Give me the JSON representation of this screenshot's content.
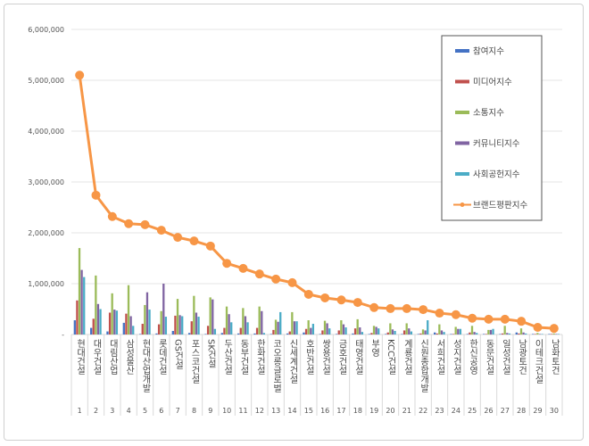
{
  "chart_data": {
    "type": "bar",
    "title": "",
    "xlabel": "",
    "ylabel": "",
    "ylim": [
      0,
      6000000
    ],
    "yticks": [
      "-",
      "1,000,000",
      "2,000,000",
      "3,000,000",
      "4,000,000",
      "5,000,000",
      "6,000,000"
    ],
    "grid": true,
    "legend_position": "top-right",
    "categories": [
      "현대건설",
      "대우건설",
      "대림산업",
      "삼성물산",
      "현대산업개발",
      "롯데건설",
      "GS건설",
      "포스코건설",
      "SK건설",
      "두산건설",
      "동부건설",
      "한화건설",
      "코오롱글로벌",
      "신세계건설",
      "호반건설",
      "쌍용건설",
      "금호건설",
      "태영건설",
      "부영",
      "KCC건설",
      "계룡건설",
      "신원종합개발",
      "서희건설",
      "성지건설",
      "한신공영",
      "동문건설",
      "일성건설",
      "남광토건",
      "이테크건설",
      "남화토건"
    ],
    "ranks": [
      "1",
      "2",
      "3",
      "4",
      "5",
      "6",
      "7",
      "8",
      "9",
      "10",
      "11",
      "12",
      "13",
      "14",
      "15",
      "16",
      "17",
      "18",
      "19",
      "20",
      "21",
      "22",
      "23",
      "24",
      "25",
      "26",
      "27",
      "28",
      "29",
      "30"
    ],
    "series": [
      {
        "name": "참여지수",
        "type": "bar",
        "color": "#4472c4",
        "values": [
          280000,
          130000,
          60000,
          230000,
          10000,
          20000,
          70000,
          30000,
          10000,
          30000,
          20000,
          20000,
          10000,
          20000,
          40000,
          10000,
          10000,
          20000,
          10000,
          10000,
          10000,
          10000,
          40000,
          10000,
          10000,
          10000,
          10000,
          40000,
          10000,
          10000
        ]
      },
      {
        "name": "미디어지수",
        "type": "bar",
        "color": "#c0504d",
        "values": [
          670000,
          310000,
          430000,
          410000,
          210000,
          200000,
          370000,
          260000,
          170000,
          130000,
          130000,
          130000,
          90000,
          60000,
          110000,
          80000,
          80000,
          120000,
          30000,
          40000,
          80000,
          20000,
          20000,
          10000,
          40000,
          10000,
          20000,
          20000,
          10000,
          10000
        ]
      },
      {
        "name": "소통지수",
        "type": "bar",
        "color": "#9bbb59",
        "values": [
          1700000,
          1160000,
          810000,
          970000,
          580000,
          460000,
          700000,
          760000,
          730000,
          550000,
          520000,
          550000,
          290000,
          440000,
          280000,
          270000,
          280000,
          300000,
          170000,
          220000,
          220000,
          100000,
          200000,
          150000,
          170000,
          90000,
          170000,
          120000,
          30000,
          20000
        ]
      },
      {
        "name": "커뮤니티지수",
        "type": "bar",
        "color": "#8064a2",
        "values": [
          1270000,
          600000,
          490000,
          360000,
          830000,
          1000000,
          380000,
          430000,
          690000,
          400000,
          360000,
          460000,
          250000,
          260000,
          130000,
          220000,
          200000,
          140000,
          150000,
          100000,
          120000,
          80000,
          80000,
          110000,
          50000,
          90000,
          30000,
          40000,
          10000,
          10000
        ]
      },
      {
        "name": "사회공헌지수",
        "type": "bar",
        "color": "#4bacc6",
        "values": [
          1130000,
          500000,
          470000,
          170000,
          490000,
          350000,
          360000,
          350000,
          110000,
          240000,
          240000,
          30000,
          440000,
          260000,
          210000,
          120000,
          140000,
          50000,
          120000,
          70000,
          60000,
          280000,
          50000,
          110000,
          30000,
          110000,
          20000,
          20000,
          10000,
          10000
        ]
      },
      {
        "name": "브랜드평판지수",
        "type": "line",
        "color": "#f79646",
        "values": [
          5100000,
          2740000,
          2320000,
          2180000,
          2160000,
          2050000,
          1910000,
          1840000,
          1740000,
          1400000,
          1300000,
          1190000,
          1090000,
          1020000,
          790000,
          720000,
          680000,
          630000,
          530000,
          510000,
          510000,
          490000,
          420000,
          390000,
          320000,
          300000,
          300000,
          260000,
          140000,
          120000
        ]
      }
    ]
  }
}
